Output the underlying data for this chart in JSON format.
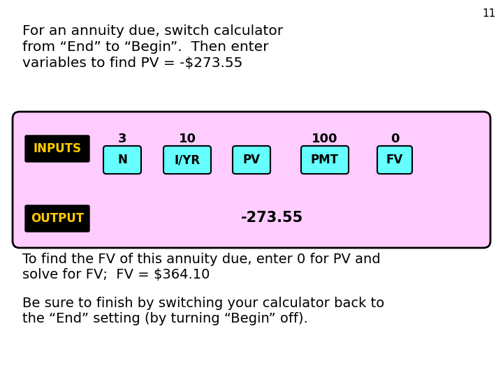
{
  "slide_number": "11",
  "title_text_line1": "For an annuity due, switch calculator",
  "title_text_line2": "from “End” to “Begin”.  Then enter",
  "title_text_line3": "variables to find PV = -$273.55",
  "inputs_label": "INPUTS",
  "output_label": "OUTPUT",
  "calc_labels": [
    "N",
    "I/YR",
    "PV",
    "PMT",
    "FV"
  ],
  "input_vals": [
    "3",
    "10",
    "",
    "100",
    "0"
  ],
  "output_value": "-273.55",
  "bottom_text_line1": "To find the FV of this annuity due, enter 0 for PV and",
  "bottom_text_line2": "solve for FV;  FV = $364.10",
  "bottom_text2_line1": "Be sure to finish by switching your calculator back to",
  "bottom_text2_line2": "the “End” setting (by turning “Begin” off).",
  "bg_color": "#ffffff",
  "box_bg_color": "#ffccff",
  "box_border_color": "#000000",
  "label_bg_color": "#000000",
  "label_text_color": "#ffcc00",
  "calc_btn_color": "#66ffff",
  "calc_btn_border": "#000000",
  "main_text_color": "#000000"
}
